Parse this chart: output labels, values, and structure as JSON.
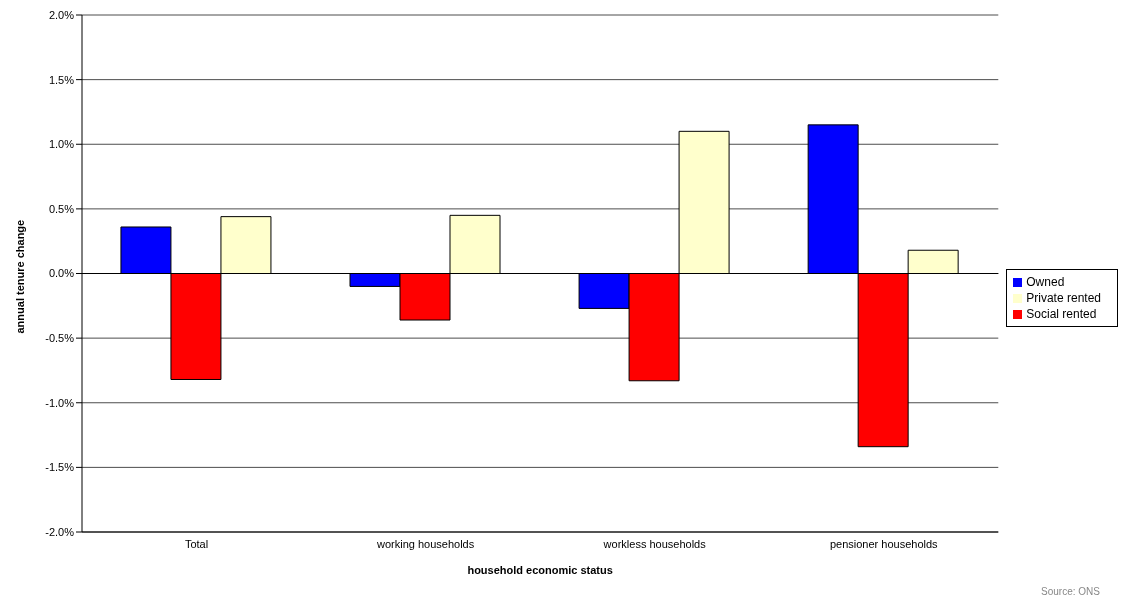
{
  "chart_data": {
    "type": "bar",
    "xlabel": "household economic status",
    "ylabel": "annual tenure change",
    "annotations": [
      "Source: ONS"
    ],
    "categories": [
      "Total",
      "working households",
      "workless households",
      "pensioner households"
    ],
    "series": [
      {
        "name": "Owned",
        "color": "#0000ff",
        "values": [
          0.36,
          -0.1,
          -0.27,
          1.15
        ]
      },
      {
        "name": "Social rented",
        "color": "#ff0000",
        "values": [
          -0.82,
          -0.36,
          -0.83,
          -1.34
        ]
      },
      {
        "name": "Private rented",
        "color": "#ffffcc",
        "values": [
          0.44,
          0.45,
          1.1,
          0.18
        ]
      }
    ],
    "ylim": [
      -2,
      2
    ],
    "yticks": [
      {
        "value": -2,
        "label": "-2.0%"
      },
      {
        "value": -1.5,
        "label": "-1.5%"
      },
      {
        "value": -1,
        "label": "-1.0%"
      },
      {
        "value": -0.5,
        "label": "-0.5%"
      },
      {
        "value": 0,
        "label": "0.0%"
      },
      {
        "value": 0.5,
        "label": "0.5%"
      },
      {
        "value": 1,
        "label": "1.0%"
      },
      {
        "value": 1.5,
        "label": "1.5%"
      },
      {
        "value": 2,
        "label": "2.0%"
      }
    ],
    "grid": "y",
    "legend": "right"
  }
}
